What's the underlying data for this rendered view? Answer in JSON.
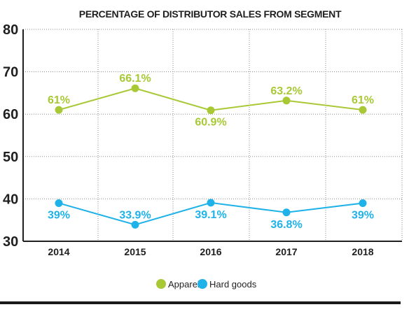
{
  "chart_data": {
    "type": "line",
    "title": "PERCENTAGE OF DISTRIBUTOR SALES FROM SEGMENT",
    "x": [
      "2014",
      "2015",
      "2016",
      "2017",
      "2018"
    ],
    "ylim": [
      30,
      80
    ],
    "yticks": [
      "30",
      "40",
      "50",
      "60",
      "70",
      "80"
    ],
    "grid": true,
    "legend_position": "bottom-center",
    "series": [
      {
        "name": "Apparel",
        "color": "#a8c935",
        "values": [
          61,
          66.1,
          60.9,
          63.2,
          61
        ],
        "labels": [
          "61%",
          "66.1%",
          "60.9%",
          "63.2%",
          "61%"
        ]
      },
      {
        "name": "Hard goods",
        "color": "#1fb2e8",
        "values": [
          39,
          33.9,
          39.1,
          36.8,
          39
        ],
        "labels": [
          "39%",
          "33.9%",
          "39.1%",
          "36.8%",
          "39%"
        ]
      }
    ]
  }
}
